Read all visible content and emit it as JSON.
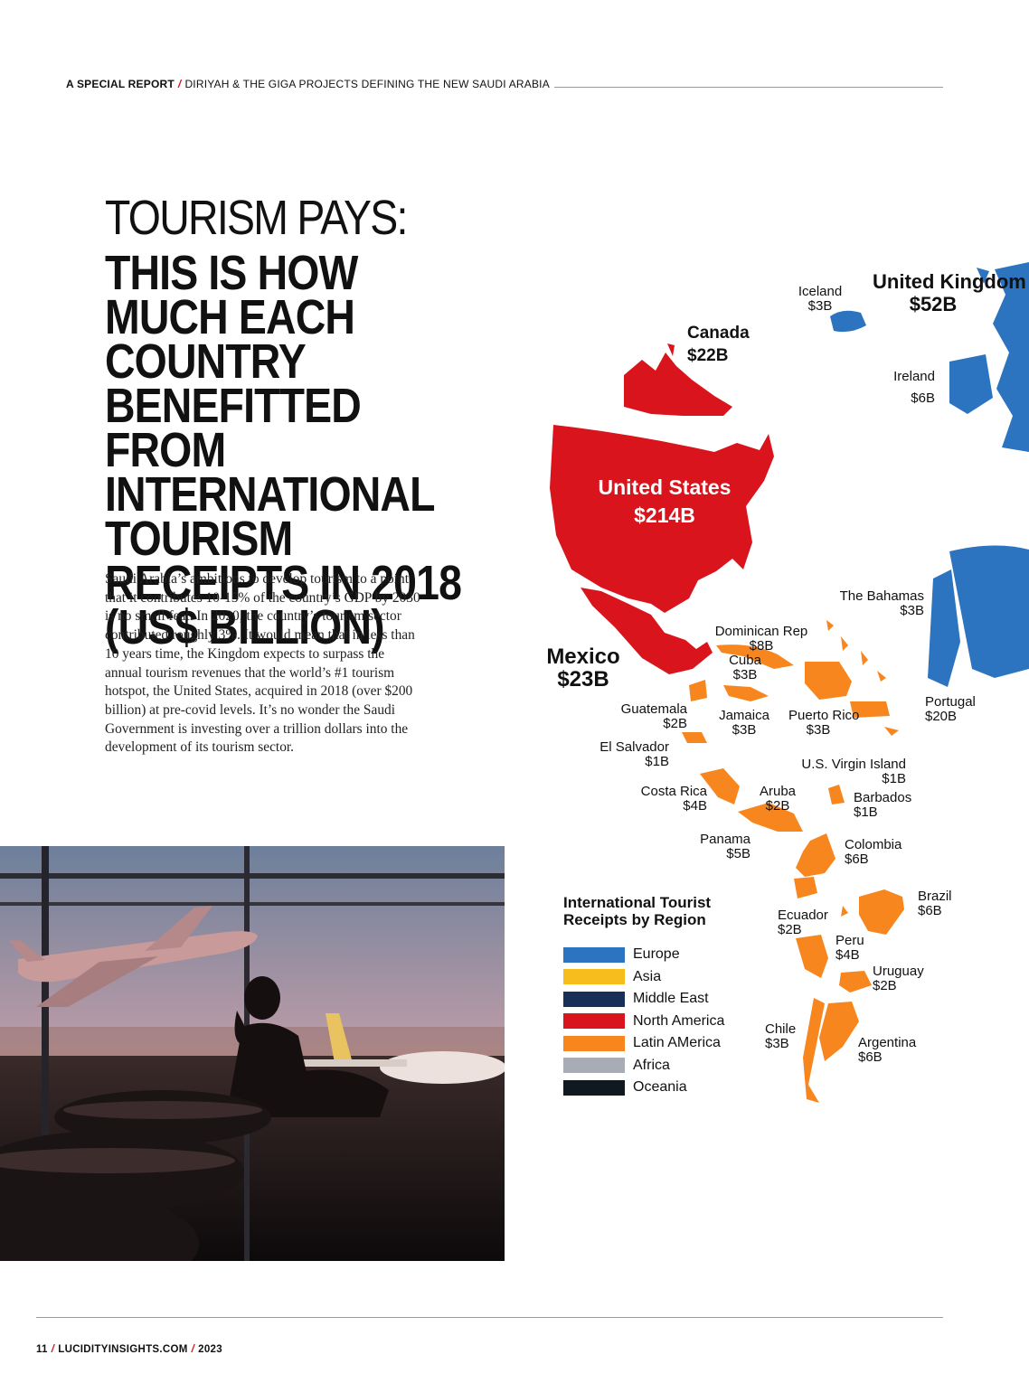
{
  "header": {
    "lead": "A SPECIAL REPORT",
    "section": "DIRIYAH & THE GIGA PROJECTS DEFINING THE NEW SAUDI ARABIA",
    "slash": "/"
  },
  "title": {
    "line1": "TOURISM PAYS:",
    "line2": "THIS IS HOW MUCH EACH COUNTRY BENEFITTED FROM INTERNATIONAL TOURISM RECEIPTS IN 2018 (US$ BILLION)"
  },
  "body": "Saudi Arabia’s ambitions to develop tourism to a point that it contributes 10-15% of the country’s GDP by 2030 is no small feat. In 2020, the country’s tourism sector contributed roughly 3%. It would mean that in less than 10 years time, the Kingdom expects to surpass the annual tourism revenues that the world’s #1 tourism hotspot, the United States, acquired in 2018 (over $200 billion) at pre-covid levels. It’s no wonder the Saudi Government is investing over a trillion dollars into the development of its tourism sector.",
  "colors": {
    "europe": "#2c74bf",
    "asia": "#f7bd1c",
    "middle_east": "#182f58",
    "north_america": "#d9141c",
    "latin_america": "#f7861f",
    "africa": "#a8adb5",
    "oceania": "#101820"
  },
  "map": {
    "labels": [
      {
        "name": "Iceland",
        "value": "$3B"
      },
      {
        "name": "United Kingdom",
        "value": "$52B"
      },
      {
        "name": "Canada",
        "value": "$22B"
      },
      {
        "name": "Ireland",
        "value": "$6B"
      },
      {
        "name": "United States",
        "value": "$214B"
      },
      {
        "name": "The Bahamas",
        "value": "$3B"
      },
      {
        "name": "Dominican Rep",
        "value": "$8B"
      },
      {
        "name": "Mexico",
        "value": "$23B"
      },
      {
        "name": "Cuba",
        "value": "$3B"
      },
      {
        "name": "Portugal",
        "value": "$20B"
      },
      {
        "name": "Guatemala",
        "value": "$2B"
      },
      {
        "name": "Jamaica",
        "value": "$3B"
      },
      {
        "name": "Puerto Rico",
        "value": "$3B"
      },
      {
        "name": "El Salvador",
        "value": "$1B"
      },
      {
        "name": "U.S. Virgin Island",
        "value": "$1B"
      },
      {
        "name": "Costa Rica",
        "value": "$4B"
      },
      {
        "name": "Aruba",
        "value": "$2B"
      },
      {
        "name": "Barbados",
        "value": "$1B"
      },
      {
        "name": "Panama",
        "value": "$5B"
      },
      {
        "name": "Colombia",
        "value": "$6B"
      },
      {
        "name": "Brazil",
        "value": "$6B"
      },
      {
        "name": "Ecuador",
        "value": "$2B"
      },
      {
        "name": "Peru",
        "value": "$4B"
      },
      {
        "name": "Uruguay",
        "value": "$2B"
      },
      {
        "name": "Chile",
        "value": "$3B"
      },
      {
        "name": "Argentina",
        "value": "$6B"
      }
    ]
  },
  "legend": {
    "title": "International Tourist Receipts by Region",
    "items": [
      {
        "label": "Europe",
        "color": "#2c74bf"
      },
      {
        "label": "Asia",
        "color": "#f7bd1c"
      },
      {
        "label": "Middle East",
        "color": "#182f58"
      },
      {
        "label": "North America",
        "color": "#d9141c"
      },
      {
        "label": "Latin AMerica",
        "color": "#f7861f"
      },
      {
        "label": "Africa",
        "color": "#a8adb5"
      },
      {
        "label": "Oceania",
        "color": "#101820"
      }
    ]
  },
  "footer": {
    "page": "11",
    "site": "LUCIDITYINSIGHTS.COM",
    "year": "2023",
    "slash": "/"
  }
}
